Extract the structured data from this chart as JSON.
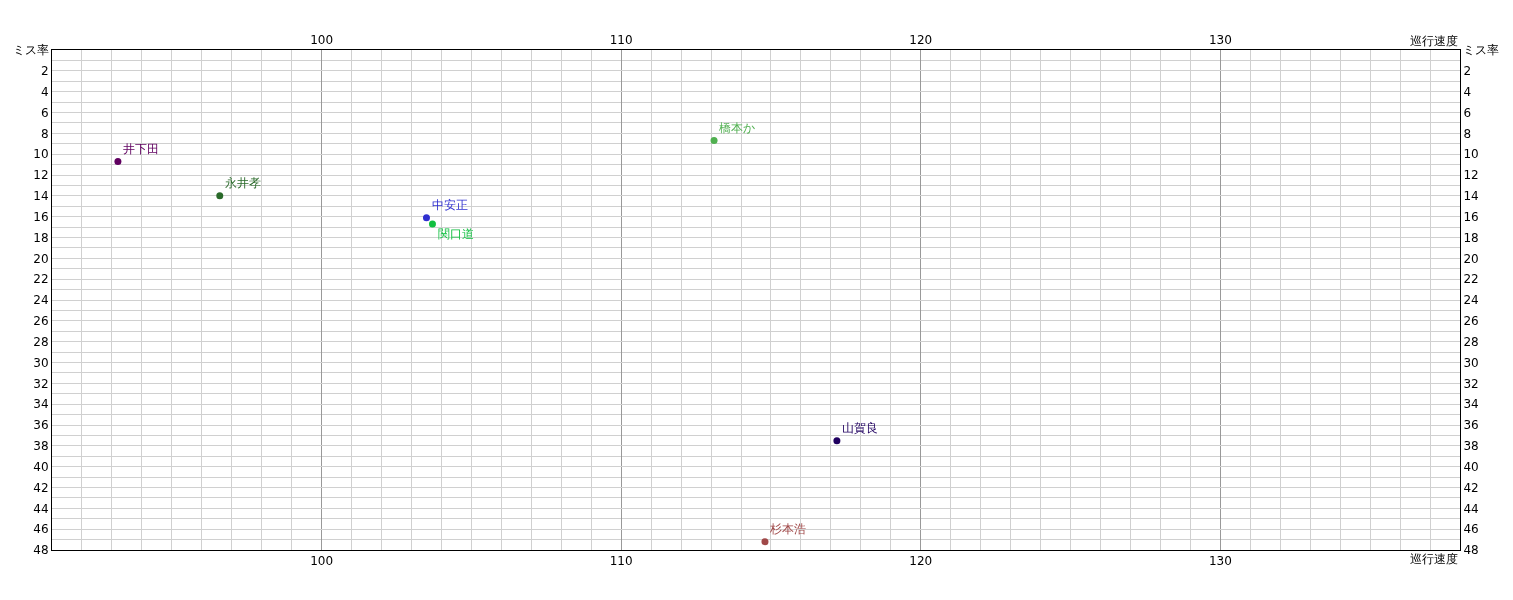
{
  "chart_data": {
    "type": "scatter",
    "xlabel": "巡行速度",
    "x2label": "巡行速度",
    "ylabel": "ミス率",
    "y2label": "ミス率",
    "xlim": [
      91,
      138
    ],
    "xticks": [
      100,
      110,
      120,
      130
    ],
    "x2lim": [
      91,
      138
    ],
    "x2ticks": [
      100,
      110,
      120,
      130
    ],
    "ylim": [
      48,
      0
    ],
    "yticks": [
      2,
      4,
      6,
      8,
      10,
      12,
      14,
      16,
      18,
      20,
      22,
      24,
      26,
      28,
      30,
      32,
      34,
      36,
      38,
      40,
      42,
      44,
      46,
      48
    ],
    "y2lim": [
      48,
      0
    ],
    "y2ticks": [
      2,
      4,
      6,
      8,
      10,
      12,
      14,
      16,
      18,
      20,
      22,
      24,
      26,
      28,
      30,
      32,
      34,
      36,
      38,
      40,
      42,
      44,
      46,
      48
    ],
    "grid": true,
    "legend": false,
    "marker": "circle",
    "series": [
      {
        "name": "井下田",
        "color": "#600060",
        "x": [
          93.2
        ],
        "values": [
          10.7
        ]
      },
      {
        "name": "永井孝",
        "color": "#2a6a2a",
        "x": [
          96.6
        ],
        "values": [
          14.0
        ]
      },
      {
        "name": "中安正",
        "color": "#3030d0",
        "x": [
          103.5
        ],
        "values": [
          16.1
        ]
      },
      {
        "name": "関口道",
        "color": "#10c040",
        "x": [
          103.7
        ],
        "values": [
          16.7
        ]
      },
      {
        "name": "橋本か",
        "color": "#50b050",
        "x": [
          113.1
        ],
        "values": [
          8.7
        ]
      },
      {
        "name": "山賀良",
        "color": "#200060",
        "x": [
          117.2
        ],
        "values": [
          37.5
        ]
      },
      {
        "name": "杉本浩",
        "color": "#a04848",
        "x": [
          114.8
        ],
        "values": [
          47.2
        ]
      }
    ]
  }
}
